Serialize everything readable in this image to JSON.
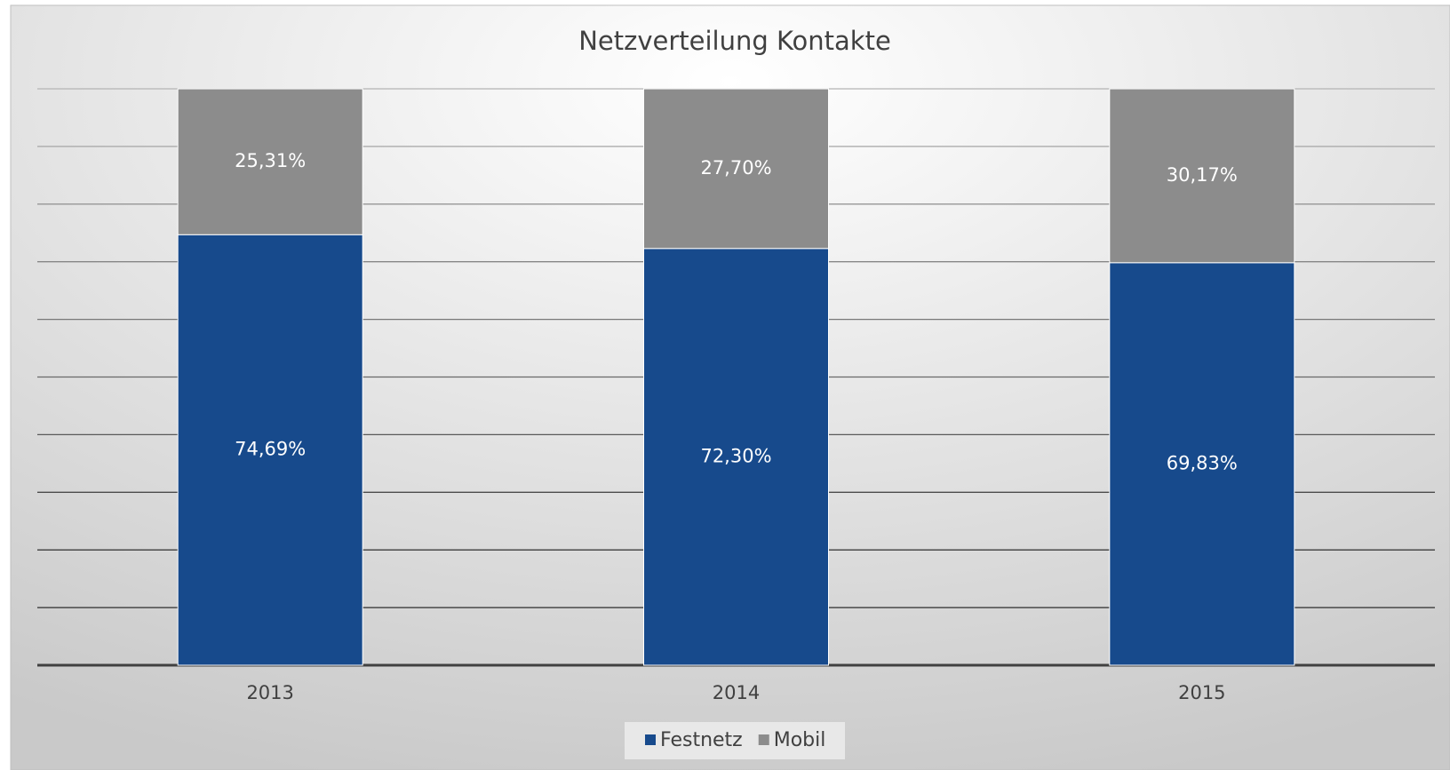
{
  "chart_data": {
    "type": "stacked_bar",
    "title": "Netzverteilung Kontakte",
    "categories": [
      "2013",
      "2014",
      "2015"
    ],
    "series": [
      {
        "name": "Festnetz",
        "color": "#174a8c",
        "values": [
          74.69,
          72.3,
          69.83
        ],
        "value_labels": [
          "74,69%",
          "72,30%",
          "69,83%"
        ]
      },
      {
        "name": "Mobil",
        "color": "#8c8c8c",
        "values": [
          25.31,
          27.7,
          30.17
        ],
        "value_labels": [
          "25,31%",
          "27,70%",
          "30,17%"
        ]
      }
    ],
    "ylim": [
      0,
      100
    ],
    "yticks": [
      0,
      10,
      20,
      30,
      40,
      50,
      60,
      70,
      80,
      90,
      100
    ],
    "grid": true,
    "show_tick_labels": false,
    "legend": "bottom"
  }
}
